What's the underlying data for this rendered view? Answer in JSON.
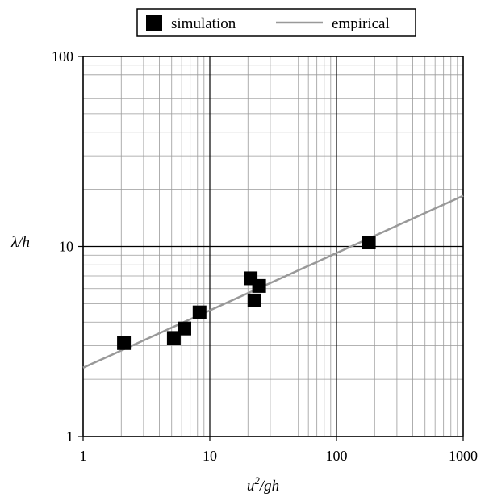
{
  "chart_data": {
    "type": "scatter",
    "x_scale": "log",
    "y_scale": "log",
    "xlim": [
      1,
      1000
    ],
    "ylim": [
      1,
      100
    ],
    "grid": true,
    "legend_position": "top-center",
    "xlabel": {
      "base": "u",
      "sup": "2",
      "rest": "/gh"
    },
    "ylabel": "λ/h",
    "x_ticks": [
      {
        "value": 1,
        "label": "1"
      },
      {
        "value": 10,
        "label": "10"
      },
      {
        "value": 100,
        "label": "100"
      },
      {
        "value": 1000,
        "label": "1000"
      }
    ],
    "y_ticks": [
      {
        "value": 1,
        "label": "1"
      },
      {
        "value": 10,
        "label": "10"
      },
      {
        "value": 100,
        "label": "100"
      }
    ],
    "series": [
      {
        "name": "simulation",
        "kind": "markers",
        "marker": "square",
        "color": "#000000",
        "points": [
          {
            "x": 2.1,
            "y": 3.1
          },
          {
            "x": 5.2,
            "y": 3.3
          },
          {
            "x": 6.3,
            "y": 3.7
          },
          {
            "x": 8.3,
            "y": 4.5
          },
          {
            "x": 21,
            "y": 6.8
          },
          {
            "x": 22.5,
            "y": 5.2
          },
          {
            "x": 24.5,
            "y": 6.2
          },
          {
            "x": 180,
            "y": 10.5
          }
        ]
      },
      {
        "name": "empirical",
        "kind": "line",
        "color": "#999999",
        "points": [
          {
            "x": 1,
            "y": 2.3
          },
          {
            "x": 1000,
            "y": 18.5
          }
        ]
      }
    ]
  }
}
